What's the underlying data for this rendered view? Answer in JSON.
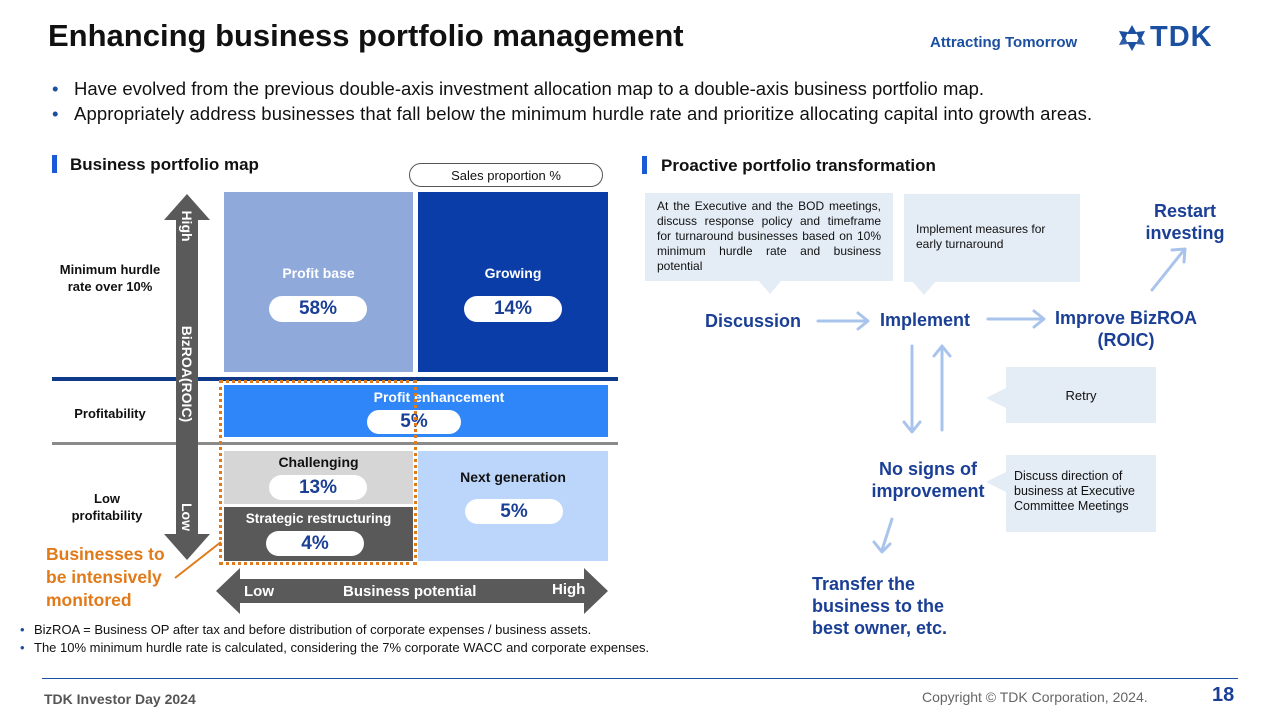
{
  "header": {
    "title": "Enhancing business portfolio management",
    "tagline": "Attracting Tomorrow",
    "logo_text": "TDK"
  },
  "bullets": [
    "Have evolved from the previous double-axis investment allocation map to a double-axis business portfolio map.",
    "Appropriately address businesses that fall below the minimum  hurdle rate and prioritize allocating capital into growth areas."
  ],
  "left_section": {
    "heading": "Business portfolio map",
    "sales_proportion_label": "Sales proportion %",
    "y_axis": {
      "high": "High",
      "label": "BizROA(ROIC)",
      "low": "Low"
    },
    "row_labels": {
      "top": "Minimum hurdle rate over 10%",
      "middle": "Profitability",
      "bottom": "Low profitability"
    },
    "cells": {
      "profit_base": {
        "label": "Profit base",
        "value": "58%"
      },
      "growing": {
        "label": "Growing",
        "value": "14%"
      },
      "profit_enhancement": {
        "label": "Profit   enhancement",
        "value": "5%"
      },
      "challenging": {
        "label": "Challenging",
        "value": "13%"
      },
      "strategic_restructuring": {
        "label": "Strategic restructuring",
        "value": "4%"
      },
      "next_generation": {
        "label": "Next generation",
        "value": "5%"
      }
    },
    "monitored_label": "Businesses to be intensively monitored",
    "x_axis": {
      "low": "Low",
      "label": "Business potential",
      "high": "High"
    }
  },
  "right_section": {
    "heading": "Proactive portfolio transformation",
    "box_discussion": "At the Executive and the BOD meetings, discuss response policy and timeframe for turnaround businesses based on 10% minimum hurdle rate and business potential",
    "box_implement": "Implement measures for early turnaround",
    "box_retry": "Retry",
    "box_direction": "Discuss direction of business at Executive Committee Meetings",
    "discussion": "Discussion",
    "implement": "Implement",
    "improve": "Improve BizROA (ROIC)",
    "restart": "Restart investing",
    "no_signs": "No signs of improvement",
    "transfer": "Transfer the business to the best owner, etc."
  },
  "notes": [
    "BizROA = Business OP after tax and before distribution of corporate expenses / business assets.",
    "The 10% minimum hurdle rate is calculated, considering the 7% corporate WACC and corporate expenses."
  ],
  "footer": {
    "left": "TDK Investor Day 2024",
    "copyright": "Copyright  © TDK Corporation, 2024.",
    "page": "18"
  },
  "colors": {
    "profit_base": "#8fa9db",
    "growing": "#0b3da8",
    "profit_enhancement": "#2f86f8",
    "challenging": "#d6d6d6",
    "strategic_restructuring": "#595959",
    "next_generation": "#bcd6fb",
    "accent_orange": "#e07a1a",
    "flow_blue": "#1a3f95"
  }
}
